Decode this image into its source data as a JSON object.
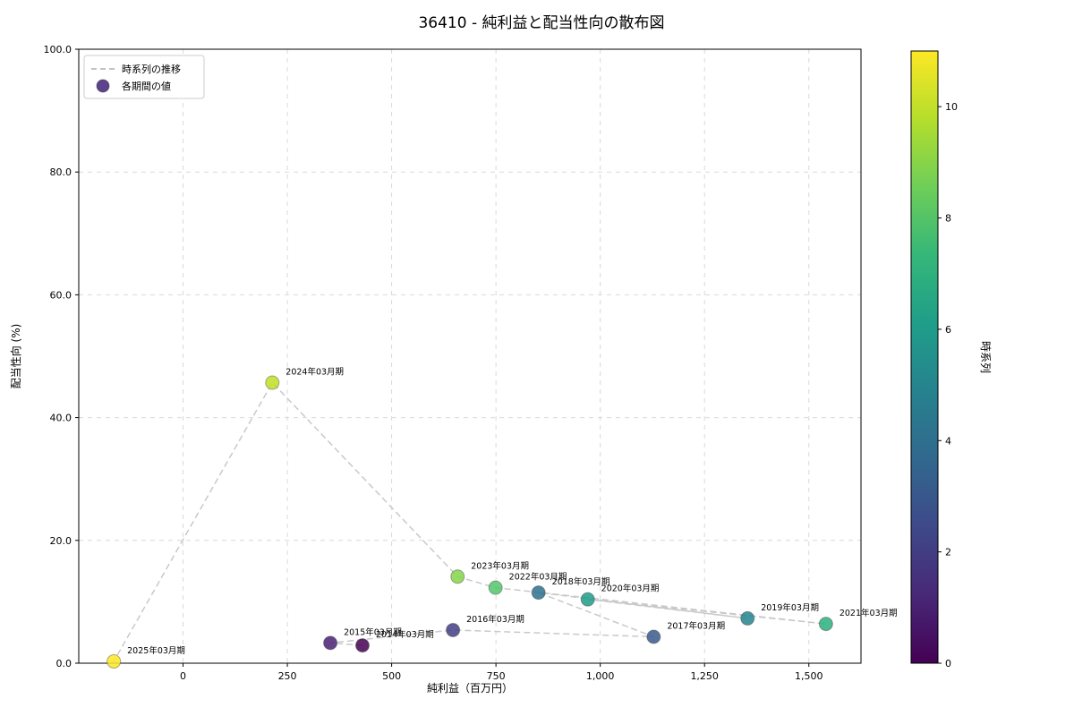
{
  "chart_data": {
    "type": "scatter",
    "title": "36410 - 純利益と配当性向の散布図",
    "xlabel": "純利益（百万円）",
    "ylabel": "配当性向 (%)",
    "xlim": [
      -250,
      1625
    ],
    "ylim": [
      0,
      100
    ],
    "grid": true,
    "xticks": {
      "values": [
        0,
        250,
        500,
        750,
        1000,
        1250,
        1500
      ],
      "labels": [
        "0",
        "250",
        "500",
        "750",
        "1,000",
        "1,250",
        "1,500"
      ]
    },
    "yticks": {
      "values": [
        0,
        20,
        40,
        60,
        80,
        100
      ],
      "labels": [
        "0.0",
        "20.0",
        "40.0",
        "60.0",
        "80.0",
        "100.0"
      ]
    },
    "legend": {
      "position": "top-left",
      "marker_color": "#4b2e83",
      "items": [
        {
          "label": "時系列の推移",
          "marker": "dashed-line"
        },
        {
          "label": "各期間の値",
          "marker": "circle"
        }
      ]
    },
    "connector": {
      "style": "dashed",
      "color": "#c9c9c9"
    },
    "colorbar": {
      "label": "時系列",
      "min": 0,
      "max": 11,
      "ticks": [
        0,
        2,
        4,
        6,
        8,
        10
      ],
      "colormap": "viridis",
      "stops": [
        "#440154",
        "#482878",
        "#3e4989",
        "#31688e",
        "#26828e",
        "#1f9e89",
        "#35b779",
        "#6ece58",
        "#b5de2b",
        "#fde725"
      ]
    },
    "points": [
      {
        "label": "2014年03月期",
        "x": 430,
        "y": 2.9,
        "t": 0,
        "color": "#440154"
      },
      {
        "label": "2015年03月期",
        "x": 353,
        "y": 3.3,
        "t": 1,
        "color": "#482173"
      },
      {
        "label": "2016年03月期",
        "x": 647,
        "y": 5.4,
        "t": 2,
        "color": "#433e85"
      },
      {
        "label": "2017年03月期",
        "x": 1128,
        "y": 4.3,
        "t": 3,
        "color": "#38598c"
      },
      {
        "label": "2018年03月期",
        "x": 852,
        "y": 11.5,
        "t": 4,
        "color": "#2d708e"
      },
      {
        "label": "2019年03月期",
        "x": 1353,
        "y": 7.3,
        "t": 5,
        "color": "#25858e"
      },
      {
        "label": "2020年03月期",
        "x": 970,
        "y": 10.4,
        "t": 6,
        "color": "#1e9b8a"
      },
      {
        "label": "2021年03月期",
        "x": 1541,
        "y": 6.4,
        "t": 7,
        "color": "#2ab07f"
      },
      {
        "label": "2022年03月期",
        "x": 749,
        "y": 12.3,
        "t": 8,
        "color": "#52c569"
      },
      {
        "label": "2023年03月期",
        "x": 658,
        "y": 14.1,
        "t": 9,
        "color": "#86d549"
      },
      {
        "label": "2024年03月期",
        "x": 214,
        "y": 45.7,
        "t": 10,
        "color": "#c2df23"
      },
      {
        "label": "2025年03月期",
        "x": -166,
        "y": 0.3,
        "t": 11,
        "color": "#fde725"
      }
    ]
  }
}
